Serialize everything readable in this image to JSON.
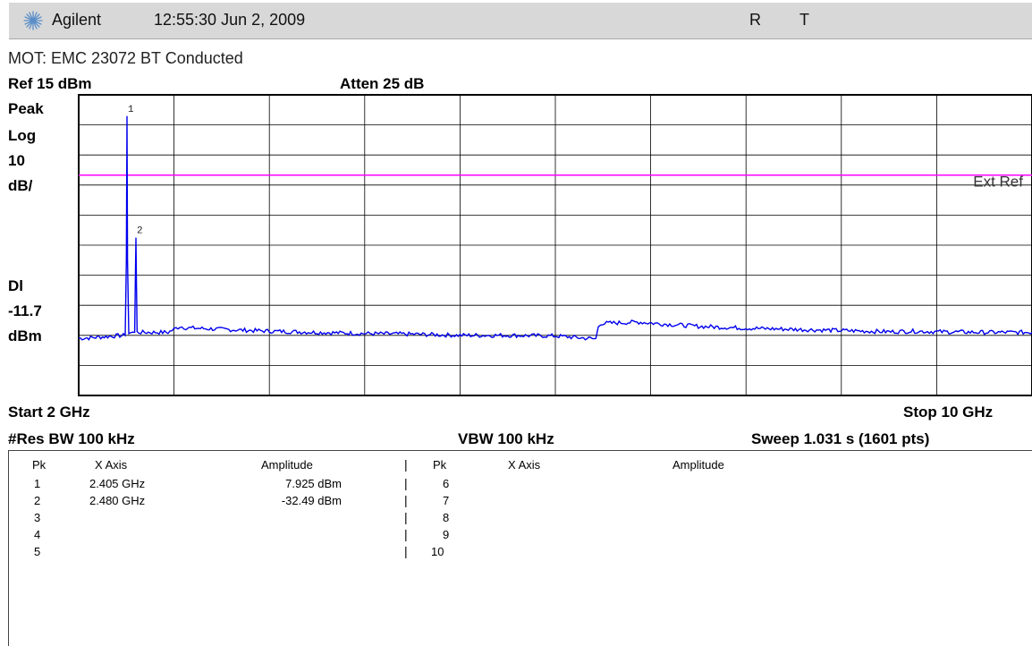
{
  "header": {
    "brand": "Agilent",
    "timestamp": "12:55:30  Jun 2, 2009",
    "status_r": "R",
    "status_t": "T",
    "logo_icon": "agilent-starburst-icon"
  },
  "meta": {
    "title": "MOT: EMC 23072 BT Conducted",
    "ref_level": "Ref 15 dBm",
    "atten": "Atten 25 dB"
  },
  "sidebar": {
    "detector": "Peak",
    "scale_type": "Log",
    "scale_value": "10",
    "scale_unit": "dB/",
    "dl_label": "Dl",
    "dl_value": "-11.7",
    "dl_unit": "dBm"
  },
  "footer": {
    "start": "Start 2 GHz",
    "stop": "Stop 10 GHz",
    "res_bw": "#Res BW 100 kHz",
    "vbw": "VBW 100 kHz",
    "sweep": "Sweep 1.031 s (1601 pts)"
  },
  "chart_data": {
    "type": "line",
    "x_unit": "GHz",
    "y_unit": "dBm",
    "xlim": [
      2,
      10
    ],
    "ylim": [
      -85,
      15
    ],
    "y_divisions": 10,
    "x_divisions": 10,
    "grid": true,
    "colors": {
      "trace": "#0000ee",
      "display_line": "#ff00ff",
      "grid": "#000000"
    },
    "display_line": {
      "value": -11.7,
      "label": "Ext Ref"
    },
    "trace": {
      "x": [
        2.0,
        2.1,
        2.2,
        2.3,
        2.39,
        2.4,
        2.405,
        2.41,
        2.42,
        2.47,
        2.475,
        2.48,
        2.485,
        2.49,
        2.6,
        2.75,
        2.8,
        2.85,
        2.9,
        3.2,
        3.6,
        4.0,
        4.4,
        4.8,
        5.2,
        5.6,
        6.0,
        6.34,
        6.36,
        6.38,
        6.4,
        6.7,
        6.9,
        7.2,
        7.6,
        8.0,
        8.4,
        8.8,
        9.0,
        9.2,
        9.6,
        10.0
      ],
      "y": [
        -66,
        -65.8,
        -65.5,
        -65.2,
        -65,
        -40,
        7.925,
        -40,
        -64,
        -64,
        -48,
        -32.49,
        -48,
        -64,
        -64,
        -64,
        -63,
        -62,
        -62.5,
        -63,
        -63.6,
        -64,
        -64.4,
        -64.6,
        -65,
        -65,
        -65.2,
        -66.2,
        -62,
        -61,
        -61,
        -60.6,
        -61.2,
        -62,
        -62.6,
        -63,
        -63.4,
        -63.8,
        -63.6,
        -63.8,
        -64,
        -64
      ]
    },
    "markers": [
      {
        "pk": "1",
        "x": 2.405,
        "y": 7.925,
        "x_label": "2.405 GHz",
        "amp_label": "7.925 dBm"
      },
      {
        "pk": "2",
        "x": 2.48,
        "y": -32.49,
        "x_label": "2.480 GHz",
        "amp_label": "-32.49 dBm"
      }
    ]
  },
  "marker_table": {
    "headers": {
      "pk": "Pk",
      "x_axis": "X Axis",
      "amplitude": "Amplitude"
    },
    "left": [
      {
        "pk": "1",
        "x": "2.405 GHz",
        "amp": "7.925 dBm"
      },
      {
        "pk": "2",
        "x": "2.480 GHz",
        "amp": "-32.49 dBm"
      },
      {
        "pk": "3",
        "x": "",
        "amp": ""
      },
      {
        "pk": "4",
        "x": "",
        "amp": ""
      },
      {
        "pk": "5",
        "x": "",
        "amp": ""
      }
    ],
    "right": [
      {
        "pk": "6"
      },
      {
        "pk": "7"
      },
      {
        "pk": "8"
      },
      {
        "pk": "9"
      },
      {
        "pk": "10"
      }
    ]
  }
}
